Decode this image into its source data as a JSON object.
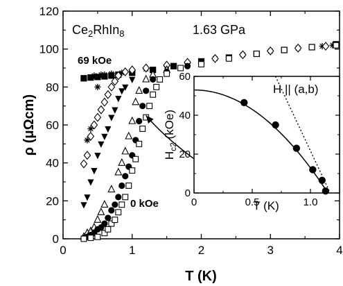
{
  "chart_data": [
    {
      "type": "scatter",
      "title": "",
      "annotations": {
        "compound": "Ce₂RhIn₈",
        "pressure": "1.63 GPa",
        "field_high": "69 kOe",
        "field_low": "0 kOe"
      },
      "xlabel": "T (K)",
      "ylabel": "ρ (μΩcm)",
      "xlim": [
        0,
        4
      ],
      "ylim": [
        0,
        120
      ],
      "xticks": [
        "0",
        "1",
        "2",
        "3",
        "4"
      ],
      "yticks": [
        "0",
        "20",
        "40",
        "60",
        "80",
        "100",
        "120"
      ],
      "grid": false,
      "series": [
        {
          "marker": "filled-square",
          "points": [
            [
              0.3,
              84.6
            ],
            [
              0.4,
              85
            ],
            [
              0.5,
              85.3
            ],
            [
              0.6,
              85.6
            ],
            [
              0.7,
              86
            ],
            [
              0.8,
              86.5
            ],
            [
              1.0,
              87.5
            ],
            [
              1.3,
              89
            ],
            [
              1.6,
              91
            ],
            [
              2.0,
              93.5
            ],
            [
              2.4,
              95.5
            ],
            [
              2.8,
              97.5
            ],
            [
              3.2,
              99.5
            ],
            [
              3.6,
              101
            ],
            [
              3.95,
              102.5
            ]
          ]
        },
        {
          "marker": "asterisk",
          "points": [
            [
              0.45,
              86
            ],
            [
              0.5,
              80
            ],
            [
              0.55,
              86.5
            ],
            [
              0.6,
              86.5
            ],
            [
              0.7,
              87
            ],
            [
              0.85,
              87.5
            ],
            [
              1.0,
              88.5
            ],
            [
              1.2,
              89.5
            ],
            [
              1.5,
              91
            ],
            [
              1.8,
              92.5
            ],
            [
              2.2,
              95
            ],
            [
              2.6,
              97
            ],
            [
              3.0,
              99
            ],
            [
              3.4,
              100.5
            ],
            [
              3.75,
              101.5
            ],
            [
              3.9,
              102
            ]
          ]
        },
        {
          "marker": "asterisk",
          "points": [
            [
              0.35,
              52
            ],
            [
              0.4,
              58
            ]
          ]
        },
        {
          "marker": "open-diamond",
          "points": [
            [
              0.3,
              39.5
            ],
            [
              0.35,
              44
            ],
            [
              0.4,
              54
            ],
            [
              0.45,
              60
            ],
            [
              0.5,
              64
            ],
            [
              0.55,
              68
            ],
            [
              0.6,
              72
            ],
            [
              0.65,
              76
            ],
            [
              0.7,
              80
            ],
            [
              0.75,
              83
            ],
            [
              0.8,
              86
            ],
            [
              0.9,
              88
            ],
            [
              1.0,
              89
            ],
            [
              1.2,
              90
            ],
            [
              1.5,
              91.5
            ],
            [
              1.8,
              93
            ],
            [
              2.2,
              95
            ],
            [
              2.6,
              97
            ],
            [
              3.0,
              99
            ],
            [
              3.4,
              100.5
            ],
            [
              3.8,
              101.5
            ]
          ]
        },
        {
          "marker": "filled-triangle-down",
          "points": [
            [
              0.3,
              18
            ],
            [
              0.35,
              22
            ],
            [
              0.4,
              30
            ],
            [
              0.45,
              36
            ],
            [
              0.5,
              44
            ],
            [
              0.55,
              50
            ],
            [
              0.6,
              54
            ],
            [
              0.65,
              58
            ],
            [
              0.7,
              64
            ],
            [
              0.75,
              68
            ],
            [
              0.8,
              74
            ],
            [
              0.85,
              78
            ],
            [
              0.9,
              80
            ],
            [
              1.0,
              84
            ]
          ]
        },
        {
          "marker": "open-triangle-up",
          "points": [
            [
              0.3,
              1
            ],
            [
              0.35,
              3
            ],
            [
              0.4,
              4
            ],
            [
              0.45,
              6
            ],
            [
              0.5,
              10
            ],
            [
              0.55,
              14
            ],
            [
              0.6,
              18
            ],
            [
              0.7,
              26
            ],
            [
              0.8,
              35
            ],
            [
              0.85,
              40
            ],
            [
              0.9,
              46
            ],
            [
              0.95,
              54
            ],
            [
              1.0,
              62
            ],
            [
              1.05,
              72
            ],
            [
              1.1,
              78
            ],
            [
              1.2,
              84
            ],
            [
              1.3,
              86.5
            ],
            [
              1.5,
              89
            ]
          ]
        },
        {
          "marker": "filled-circle",
          "points": [
            [
              0.3,
              0.5
            ],
            [
              0.35,
              1
            ],
            [
              0.4,
              2
            ],
            [
              0.45,
              3
            ],
            [
              0.5,
              5
            ],
            [
              0.55,
              6
            ],
            [
              0.6,
              8
            ],
            [
              0.65,
              11
            ],
            [
              0.7,
              15
            ],
            [
              0.75,
              18
            ],
            [
              0.8,
              22
            ],
            [
              0.85,
              28
            ],
            [
              0.9,
              33
            ],
            [
              0.95,
              38
            ],
            [
              1.0,
              44
            ],
            [
              1.05,
              52
            ],
            [
              1.1,
              62
            ],
            [
              1.15,
              70
            ],
            [
              1.2,
              78
            ],
            [
              1.3,
              84
            ],
            [
              1.5,
              88
            ],
            [
              1.8,
              91
            ]
          ]
        },
        {
          "marker": "open-square",
          "points": [
            [
              0.3,
              0
            ],
            [
              0.4,
              0.5
            ],
            [
              0.5,
              1
            ],
            [
              0.6,
              3
            ],
            [
              0.65,
              5
            ],
            [
              0.7,
              8
            ],
            [
              0.75,
              10
            ],
            [
              0.8,
              14
            ],
            [
              0.85,
              18
            ],
            [
              0.9,
              22
            ],
            [
              0.95,
              28
            ],
            [
              1.0,
              36
            ],
            [
              1.05,
              42
            ],
            [
              1.1,
              50
            ],
            [
              1.15,
              58
            ],
            [
              1.2,
              64
            ],
            [
              1.25,
              70
            ],
            [
              1.3,
              76
            ],
            [
              1.35,
              80
            ],
            [
              1.4,
              84
            ],
            [
              1.5,
              87
            ],
            [
              1.7,
              90
            ],
            [
              2.0,
              92
            ],
            [
              2.4,
              95
            ],
            [
              2.8,
              97.5
            ],
            [
              3.2,
              99.5
            ],
            [
              3.6,
              101
            ],
            [
              3.95,
              102
            ]
          ]
        }
      ],
      "arrow": {
        "from": [
          1.9,
          42
        ],
        "to": [
          1.2,
          65
        ]
      }
    },
    {
      "type": "scatter",
      "title": "",
      "annotation": "H || (a,b)",
      "xlabel": "T (K)",
      "ylabel": "Hc2 (kOe)",
      "ylabel_main": "H",
      "ylabel_sub": "c2",
      "xlim": [
        0,
        1.25
      ],
      "ylim": [
        0,
        60
      ],
      "xticks": [
        "0",
        "0.5",
        "1.0"
      ],
      "yticks": [
        "0",
        "20",
        "40",
        "60"
      ],
      "points": [
        [
          0.43,
          46.5
        ],
        [
          0.7,
          35
        ],
        [
          0.88,
          23
        ],
        [
          1.02,
          12
        ],
        [
          1.1,
          6.5
        ],
        [
          1.13,
          1
        ]
      ],
      "fit_curve": {
        "H0": 53,
        "Tc": 1.15
      },
      "slope_line": {
        "from": [
          0.7,
          60
        ],
        "to": [
          1.17,
          0
        ]
      }
    }
  ]
}
